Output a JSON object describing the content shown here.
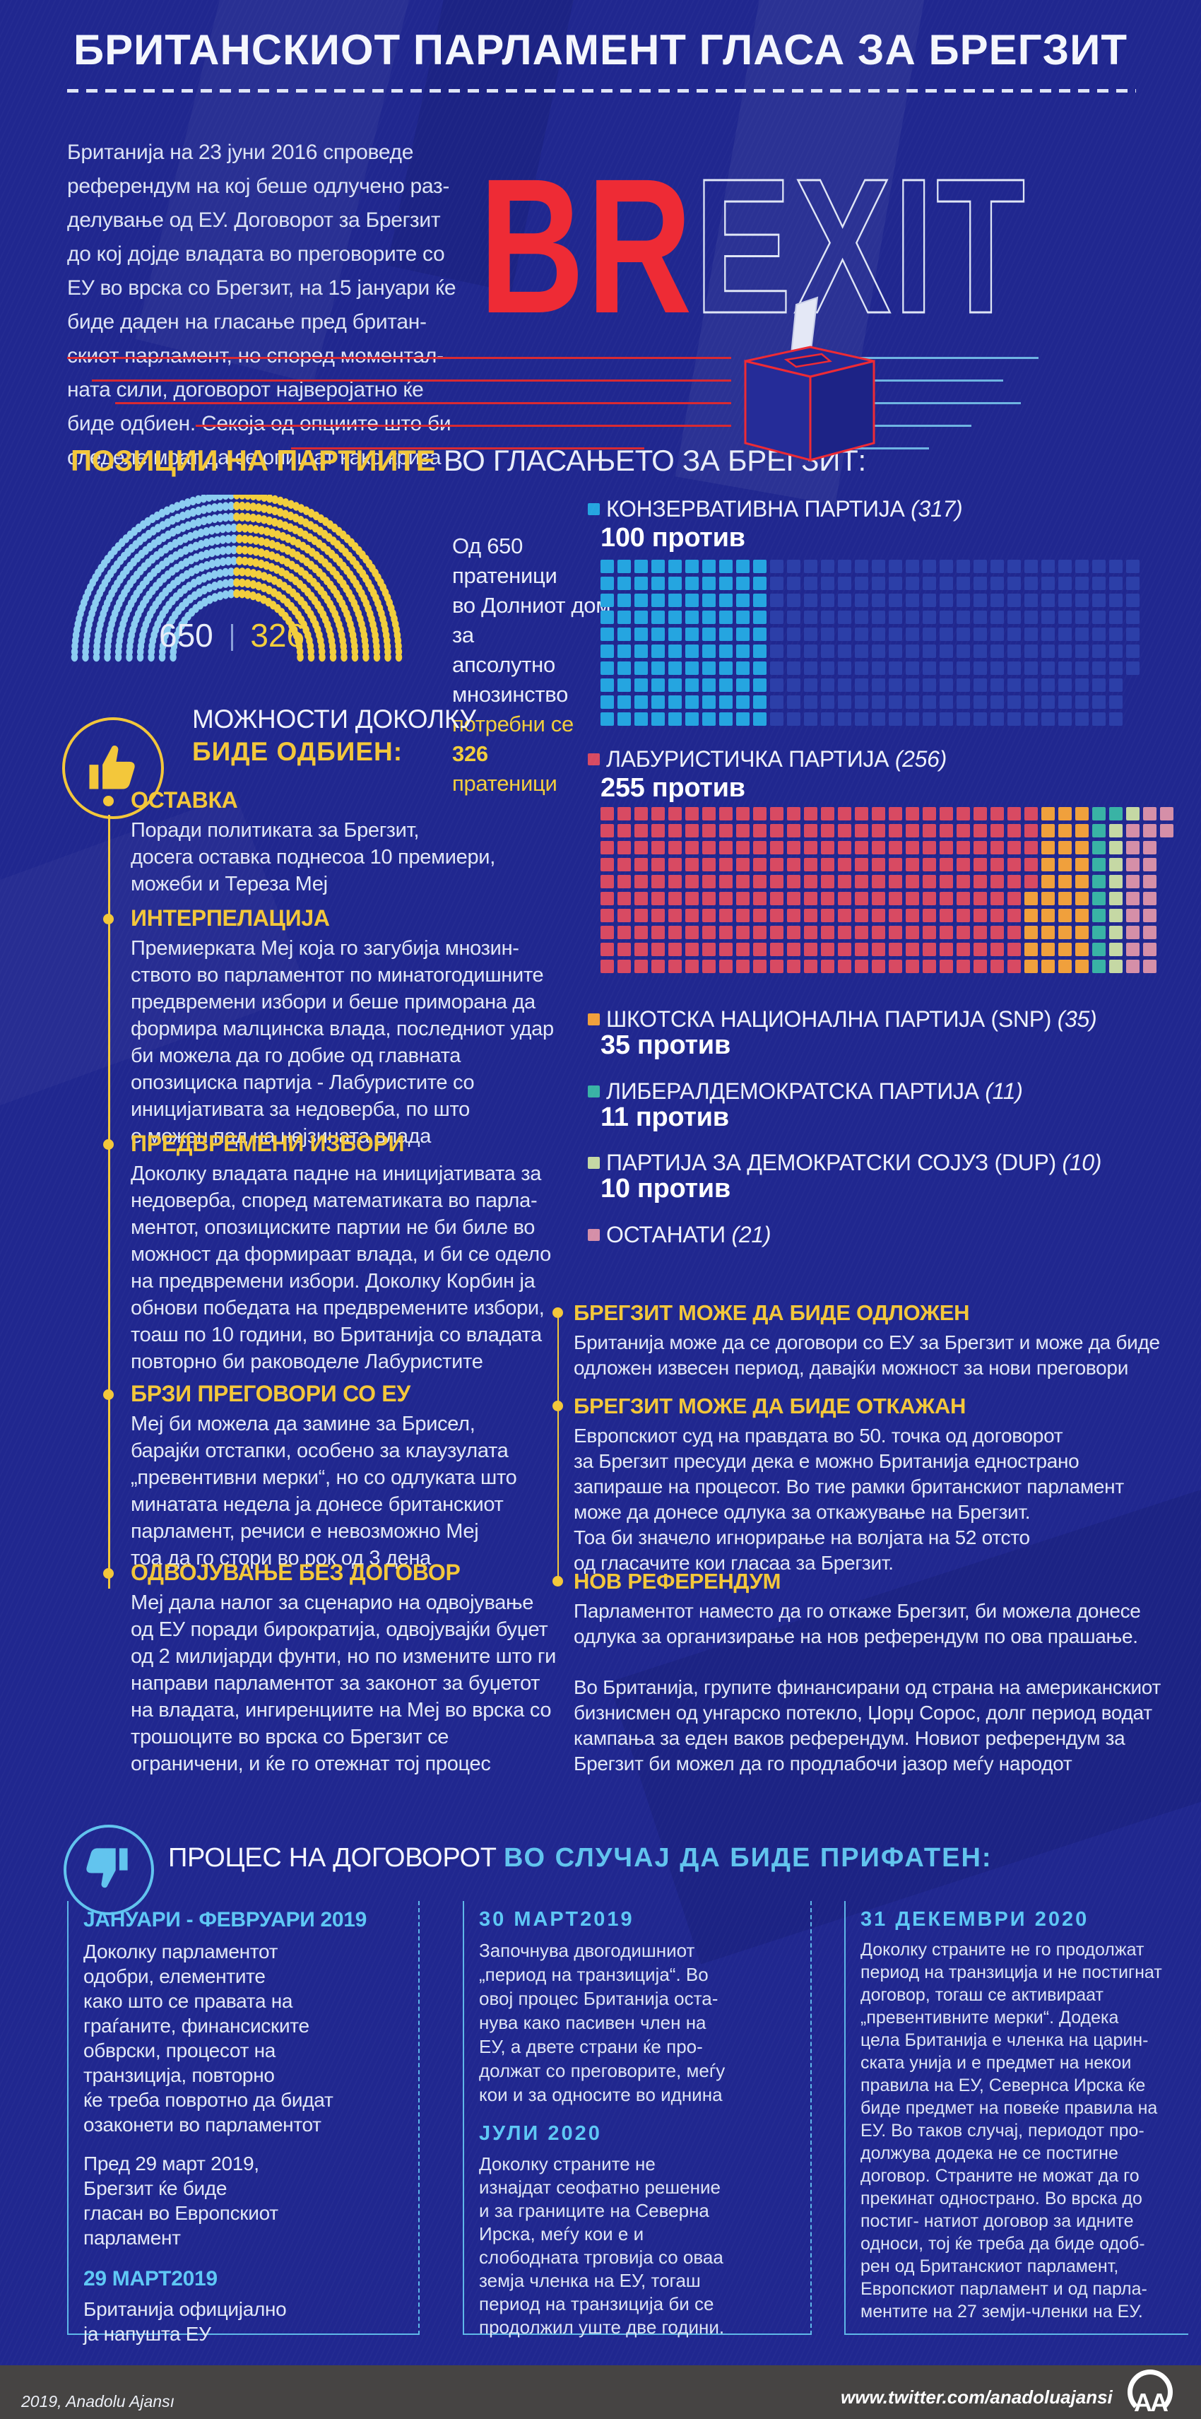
{
  "page": {
    "title": "БРИТАНСКИОТ ПАРЛАМЕНТ ГЛАСА ЗА БРЕГЗИТ"
  },
  "intro": {
    "text": "Британија на 23 јуни 2016 спроведе\nреферендум на кој беше одлучено  раз-\nделување од ЕУ. Договорот за Брегзит\nдо кој дојде владата во преговорите со\nЕУ во врска со Брегзит, на 15 јануари ќе\nбиде даден на гласање пред британ-\nскиот парламент, но според моментал-\nната сили, договорот најверојатно ќе\nбиде одбиен. Секоја од опциите што би\nследеле моат да се опишат како криза"
  },
  "logo": {
    "br": "BR",
    "exit": "EXIT"
  },
  "positions": {
    "heading_accent": "ПОЗИЦИИ НА ПАРТИИТЕ",
    "heading_rest": " ВО ГЛАСАЊЕТО ЗА БРЕГЗИТ:",
    "seats_total": "650",
    "seats_majority": "326",
    "desc_white": "Од 650 пратеници\nво Долниот дом за\nапсолутно мнозинство",
    "desc_yellow_pre": "потребни се ",
    "desc_yellow_num": "326",
    "desc_yellow_tail": "пратеници"
  },
  "parties": [
    {
      "name": "КОНЗЕРВАТИВНА ПАРТИЈА ",
      "seats": "(317)",
      "against": "100 против",
      "color": "#25a5e0"
    },
    {
      "name": "ЛАБУРИСТИЧКА ПАРТИЈА ",
      "seats": "(256)",
      "against": "255 против",
      "color": "#d84a62"
    },
    {
      "name": "ШКОТСКА НАЦИОНАЛНА ПАРТИЈА (SNP) ",
      "seats": "(35)",
      "against": "35 против",
      "color": "#f0a03c"
    },
    {
      "name": "ЛИБЕРАЛДЕМОКРАТСКА ПАРТИЈА ",
      "seats": "(11)",
      "against": "11 против",
      "color": "#39b3a5"
    },
    {
      "name": "ПАРТИЈА ЗА ДЕМОКРАТСКИ СОЈУЗ  (DUP) ",
      "seats": "(10)",
      "against": "10 против",
      "color": "#c5d8a4"
    },
    {
      "name": "ОСТАНАТИ ",
      "seats": "(21)",
      "against": "",
      "color": "#d58fa8"
    }
  ],
  "options": {
    "heading_white": "МОЖНОСТИ ДОКОЛКУ",
    "heading_yellow": "БИДЕ ОДБИЕН:",
    "items": [
      {
        "title": "ОСТАВКА",
        "body": "Поради политиката за Брегзит,\nдосега оставка поднесоа 10 премиери,\nможеби и Тереза Меј"
      },
      {
        "title": "ИНТЕРПЕЛАЦИЈА",
        "body": "Премиерката Меј која го загубија мнозин-\nството во парламентот по минатогодишните\nпредвремени избори и беше приморана да\nформира малцинска влада, последниот удар\nби можела да го добие од главната\nопозициска партија - Лабуристите со\nиницијативата за недоверба, по што\nе можен пад на нејзината влада"
      },
      {
        "title": "ПРЕДВРЕМЕНИ ИЗБОРИ",
        "body": "Доколку владата падне на иницијативата за\nнедоверба, според математиката во парла-\nментот, опозициските партии не би биле во\nможност да формираат влада, и би се одело\nна предвремени избори. Доколку Корбин ја\nобнови победата на предвремените избори,\nтоаш по 10 години, во Британија со владата\nповторно би раководеле Лабуристите"
      },
      {
        "title": "БРЗИ ПРЕГОВОРИ СО ЕУ",
        "body": "Меј би можела да замине за Брисел,\nбарајќи отстапки, особено за клаузулата\n„превентивни мерки“, но со одлуката што\nминатата недела ја донесе британскиот\nпарламент, речиси е невозможно Меј\nтоа да го стори во рок од 3 дена"
      },
      {
        "title": "ОДВОЈУВАЊЕ БЕЗ ДОГОВОР",
        "body": "Меј дала налог за сценарио на одвојување\nод ЕУ поради бирократија, одвојувајќи буџет\nод 2 милијарди фунти, но по измените што ги\nнаправи парламентот за законот за буџетот\nна владата, ингиренциите на  Меј во врска со\nтрошоците во врска со Брегзит се\nограничени, и ќе го отежнат тој процес"
      }
    ]
  },
  "outcomes": {
    "items": [
      {
        "title": "БРЕГЗИТ МОЖЕ ДА БИДЕ ОДЛОЖЕН",
        "body": "Британија може да се договори со ЕУ за Брегзит и може да биде\nодложен извесен период, давајќи можност за нови преговори"
      },
      {
        "title": "БРЕГЗИТ МОЖЕ ДА БИДЕ ОТКАЖАН",
        "body": "Европскиот суд на правдата во 50. точка од договорот\nза Брегзит пресуди дека е можно Британија еднострано\nзапираше на процесот. Во тие рамки британскиот парламент\nможе да донесе одлука за откажување на Брегзит.\nТоа би значело игнорирање на волјата на 52 отсто\nод гласачите кои гласаа за Брегзит."
      },
      {
        "title": "НОВ РЕФЕРЕНДУМ",
        "body": "Парламентот наместо да го откаже Брегзит, би можела донесе\nодлука за организирање на нов референдум по ова прашање.\n\nВо Британија, групите финансирани од страна на американскиот\nбизнисмен од унгарско потекло, Џорџ Сорос, долг период водат\nкампања за еден ваков референдум. Новиот референдум за\nБрегзит би можел да го продлабочи јазор меѓу народот"
      }
    ]
  },
  "process": {
    "heading_white": "ПРОЦЕС НА ДОГОВОРОТ ",
    "heading_accent": "ВО СЛУЧАЈ ДА БИДЕ ПРИФАТЕН:",
    "col1": {
      "h1": "ЈАНУАРИ - ФЕВРУАРИ 2019",
      "p1": "Доколку парламентот\nодобри, елементите\nкако што се правата на\nграѓаните, финансиските\nобврски, процесот на\nтранзиција, повторно\nќе треба повротно да  бидат\nозаконети во парламентот",
      "p2": "Пред 29 март 2019,\nБрегзит ќе биде\nгласан во Европскиот\nпарламент",
      "h2": "29 МАРТ2019",
      "p3": "Британија официјално\nја напушта ЕУ"
    },
    "col2": {
      "h1": "30 МАРТ2019",
      "p1": "Започнува двогодишниот\n„период на транзиција“. Во\nовој процес Британија оста-\nнува како пасивен член на\nЕУ, а двете страни ќе про-\nдолжат со преговорите, меѓу\nкои и за односите во иднина",
      "h2": "ЈУЛИ 2020",
      "p2": "Доколку страните не\nизнајдат сеофатно решение\nи за границите на Северна\nИрска, меѓу кои е и\nслободната трговија со оваа\nземја членка на ЕУ, тогаш\nпериод на транзиција би се\nпродолжил уште две години."
    },
    "col3": {
      "h1": "31 ДЕКЕМВРИ 2020",
      "p1": "Доколку страните не го продолжат\nпериод на транзиција и не постигнат\nдоговор, тогаш се активираат\n„превентивните мерки“. Додека\nцела Британија е членка на  царин-\nската унија и е предмет на некои\nправила на ЕУ, Севернса Ирска ќе\nбиде предмет на повеќе правила на\nЕУ. Во таков случај, периодот про-\nдолжува додека не се постигне\nдоговор. Страните не можат да го\nпрекинат однострано. Во врска до\nпостиг- натиот договор за идните\nодноси, тој ќе треба да биде одоб-\nрен од Британскиот парламент,\nЕвропскиот парламент и од парла-\nментите на 27 земји-членки на ЕУ."
    }
  },
  "footer": {
    "left": "2019, Anadolu Ajansı",
    "url": "www.twitter.com/anadoluajansi",
    "logo": "AA"
  },
  "chart_data": [
    {
      "type": "parliament",
      "title": "Долниот дом",
      "total": 650,
      "majority": 326,
      "halves": [
        {
          "label": "лева половина",
          "value": 325,
          "color": "#8ccdf1"
        },
        {
          "label": "десна половина",
          "value": 325,
          "color": "#f2ce3d"
        }
      ]
    },
    {
      "type": "waffle",
      "title": "КОНЗЕРВАТИВНА ПАРТИЈА (317) — 100 против",
      "rows": 10,
      "segments": [
        {
          "label": "против",
          "value": 100,
          "color": "#25a5e0"
        },
        {
          "label": "останати пратеници",
          "value": 217,
          "color": "#2c3fa8"
        }
      ]
    },
    {
      "type": "waffle",
      "title": "Опозициски партии — гласови против",
      "rows": 10,
      "segments": [
        {
          "label": "Лабуристичка партија против",
          "value": 255,
          "color": "#d84a62"
        },
        {
          "label": "СНП против",
          "value": 35,
          "color": "#f0a03c"
        },
        {
          "label": "Либералдемократска партија против",
          "value": 11,
          "color": "#39b3a5"
        },
        {
          "label": "ДУП против",
          "value": 10,
          "color": "#c5d8a4"
        },
        {
          "label": "Останати",
          "value": 21,
          "color": "#d58fa8"
        }
      ]
    }
  ]
}
